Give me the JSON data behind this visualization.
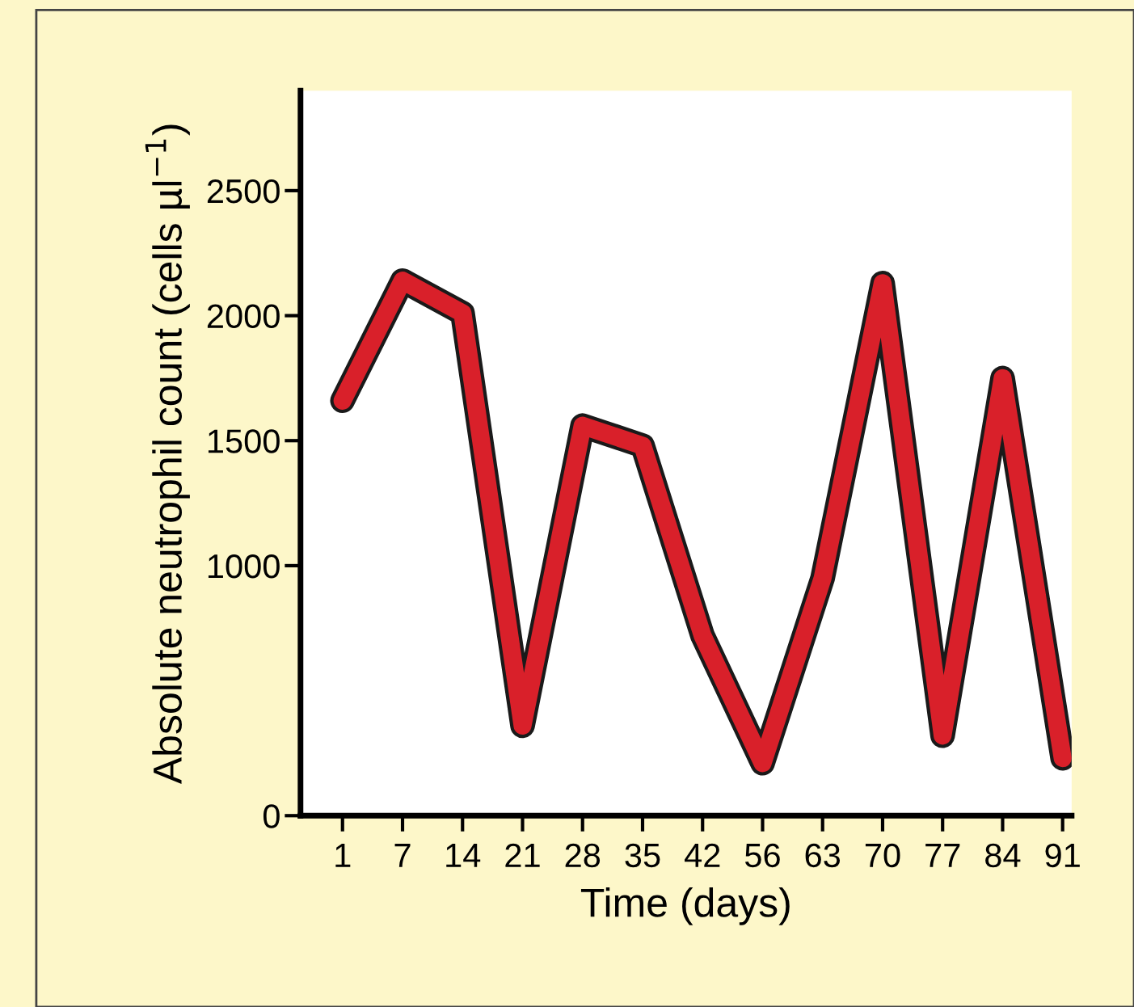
{
  "chart_data": {
    "type": "line",
    "xlabel": "Time (days)",
    "ylabel": "Absolute neutrophil count (cells µl$^{−1}$)",
    "categories": [
      "1",
      "7",
      "14",
      "21",
      "28",
      "35",
      "42",
      "56",
      "63",
      "70",
      "77",
      "84",
      "91"
    ],
    "series": [
      {
        "color": "#d9202a",
        "values": [
          1660,
          2140,
          2010,
          360,
          1560,
          1480,
          720,
          210,
          950,
          2130,
          320,
          1750,
          230
        ]
      }
    ],
    "ylim": [
      0,
      2900
    ],
    "yticks": [
      0,
      1000,
      1500,
      2000,
      2500
    ],
    "grid": false,
    "legend": false,
    "marker": "none",
    "line_style": "solid"
  }
}
